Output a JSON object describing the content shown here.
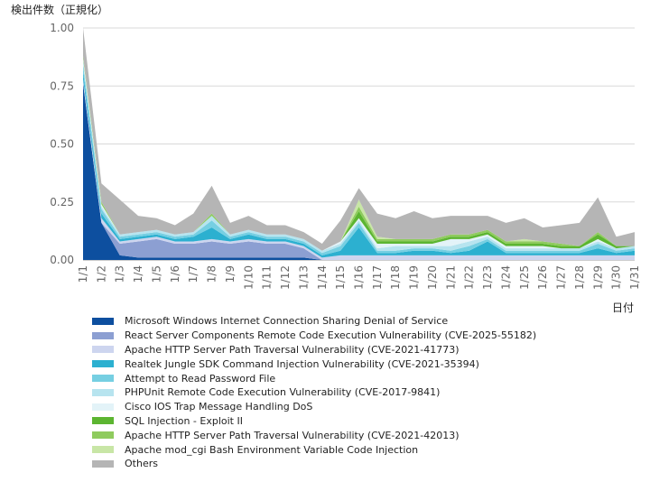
{
  "chart_data": {
    "type": "area",
    "stacked": true,
    "ylabel": "検出件数（正規化）",
    "xlabel": "日付",
    "ylim": [
      0,
      1.0
    ],
    "yticks": [
      "0.00",
      "0.25",
      "0.50",
      "0.75",
      "1.00"
    ],
    "yticks_values": [
      0,
      0.25,
      0.5,
      0.75,
      1.0
    ],
    "categories": [
      "1/1",
      "1/2",
      "1/3",
      "1/4",
      "1/5",
      "1/6",
      "1/7",
      "1/8",
      "1/9",
      "1/10",
      "1/11",
      "1/12",
      "1/13",
      "1/14",
      "1/15",
      "1/16",
      "1/17",
      "1/18",
      "1/19",
      "1/20",
      "1/21",
      "1/22",
      "1/23",
      "1/24",
      "1/25",
      "1/26",
      "1/27",
      "1/28",
      "1/29",
      "1/30",
      "1/31"
    ],
    "series": [
      {
        "name": "Microsoft Windows Internet Connection Sharing Denial of Service",
        "color": "#0d4f9f",
        "values": [
          0.76,
          0.16,
          0.02,
          0.01,
          0.01,
          0.01,
          0.01,
          0.01,
          0.01,
          0.01,
          0.01,
          0.01,
          0.01,
          0,
          0,
          0,
          0,
          0,
          0,
          0,
          0,
          0,
          0,
          0,
          0,
          0,
          0,
          0,
          0,
          0,
          0
        ]
      },
      {
        "name": "React Server Components Remote Code Execution Vulnerability (CVE-2025-55182)",
        "color": "#8c9fd2",
        "values": [
          0,
          0,
          0.05,
          0.07,
          0.08,
          0.06,
          0.06,
          0.07,
          0.06,
          0.07,
          0.06,
          0.06,
          0.04,
          0,
          0,
          0,
          0,
          0,
          0,
          0,
          0,
          0,
          0,
          0,
          0,
          0,
          0,
          0,
          0,
          0,
          0
        ]
      },
      {
        "name": "Apache HTTP Server Path Traversal Vulnerability (CVE-2021-41773)",
        "color": "#cdd5ef",
        "values": [
          0.02,
          0.02,
          0.01,
          0.01,
          0.01,
          0.01,
          0.01,
          0.01,
          0.01,
          0.01,
          0.01,
          0.01,
          0.01,
          0.01,
          0.02,
          0.02,
          0.02,
          0.02,
          0.02,
          0.02,
          0.02,
          0.02,
          0.02,
          0.02,
          0.02,
          0.02,
          0.02,
          0.02,
          0.02,
          0.02,
          0.02
        ]
      },
      {
        "name": "Realtek Jungle SDK Command Injection Vulnerability (CVE-2021-35394)",
        "color": "#2cb0d0",
        "values": [
          0.03,
          0.02,
          0.01,
          0.01,
          0.01,
          0.01,
          0.02,
          0.05,
          0.01,
          0.02,
          0.01,
          0.01,
          0.01,
          0.01,
          0.02,
          0.12,
          0.01,
          0.01,
          0.02,
          0.02,
          0.01,
          0.02,
          0.06,
          0.01,
          0.01,
          0.01,
          0.01,
          0.01,
          0.03,
          0.01,
          0.02
        ]
      },
      {
        "name": "Attempt to Read Password File",
        "color": "#76cfe2",
        "values": [
          0.03,
          0.02,
          0.01,
          0.01,
          0.01,
          0.01,
          0.01,
          0.03,
          0.01,
          0.01,
          0.01,
          0.01,
          0.01,
          0.01,
          0.02,
          0.02,
          0.01,
          0.01,
          0.01,
          0.01,
          0.01,
          0.02,
          0.01,
          0.01,
          0.01,
          0.01,
          0.01,
          0.01,
          0.02,
          0.01,
          0.01
        ]
      },
      {
        "name": "PHPUnit Remote Code Execution Vulnerability (CVE-2017-9841)",
        "color": "#b7e4ef",
        "values": [
          0.02,
          0.01,
          0.01,
          0.01,
          0.01,
          0.01,
          0.01,
          0.02,
          0.01,
          0.01,
          0.01,
          0.01,
          0.01,
          0.01,
          0.01,
          0.01,
          0.01,
          0.02,
          0.01,
          0.01,
          0.02,
          0.02,
          0.01,
          0.01,
          0.01,
          0.01,
          0.01,
          0.01,
          0.01,
          0.01,
          0.01
        ]
      },
      {
        "name": "Cisco IOS Trap Message Handling DoS",
        "color": "#e3f3f8",
        "values": [
          0.01,
          0.01,
          0,
          0,
          0,
          0,
          0,
          0,
          0,
          0,
          0,
          0,
          0,
          0,
          0.01,
          0.01,
          0.02,
          0.01,
          0.01,
          0.01,
          0.03,
          0.01,
          0.01,
          0.01,
          0.01,
          0.01,
          0,
          0,
          0.01,
          0,
          0
        ]
      },
      {
        "name": "SQL Injection - Exploit II",
        "color": "#5cb531",
        "values": [
          0,
          0,
          0,
          0,
          0,
          0,
          0,
          0,
          0,
          0,
          0,
          0,
          0,
          0,
          0,
          0.03,
          0.01,
          0.01,
          0.01,
          0.01,
          0.01,
          0.01,
          0.01,
          0.01,
          0.01,
          0.01,
          0.01,
          0.01,
          0.02,
          0.01,
          0
        ]
      },
      {
        "name": "Apache HTTP Server Path Traversal Vulnerability (CVE-2021-42013)",
        "color": "#8fcb5e",
        "values": [
          0.01,
          0.01,
          0,
          0,
          0,
          0,
          0,
          0.01,
          0,
          0,
          0,
          0,
          0,
          0,
          0,
          0.02,
          0.01,
          0.01,
          0.01,
          0.01,
          0.01,
          0.01,
          0.01,
          0.01,
          0.01,
          0.01,
          0.01,
          0,
          0.01,
          0,
          0
        ]
      },
      {
        "name": "Apache mod_cgi Bash Environment Variable Code Injection",
        "color": "#c8e6a6",
        "values": [
          0,
          0,
          0,
          0,
          0,
          0,
          0,
          0,
          0,
          0,
          0,
          0,
          0,
          0,
          0,
          0.03,
          0.01,
          0,
          0,
          0,
          0,
          0,
          0,
          0,
          0.01,
          0,
          0,
          0,
          0,
          0,
          0
        ]
      },
      {
        "name": "Others",
        "color": "#b5b5b5",
        "values": [
          0.12,
          0.08,
          0.15,
          0.07,
          0.05,
          0.04,
          0.08,
          0.12,
          0.05,
          0.06,
          0.04,
          0.04,
          0.03,
          0.03,
          0.09,
          0.05,
          0.1,
          0.09,
          0.12,
          0.09,
          0.08,
          0.08,
          0.06,
          0.08,
          0.09,
          0.06,
          0.08,
          0.1,
          0.15,
          0.04,
          0.06
        ]
      }
    ]
  }
}
